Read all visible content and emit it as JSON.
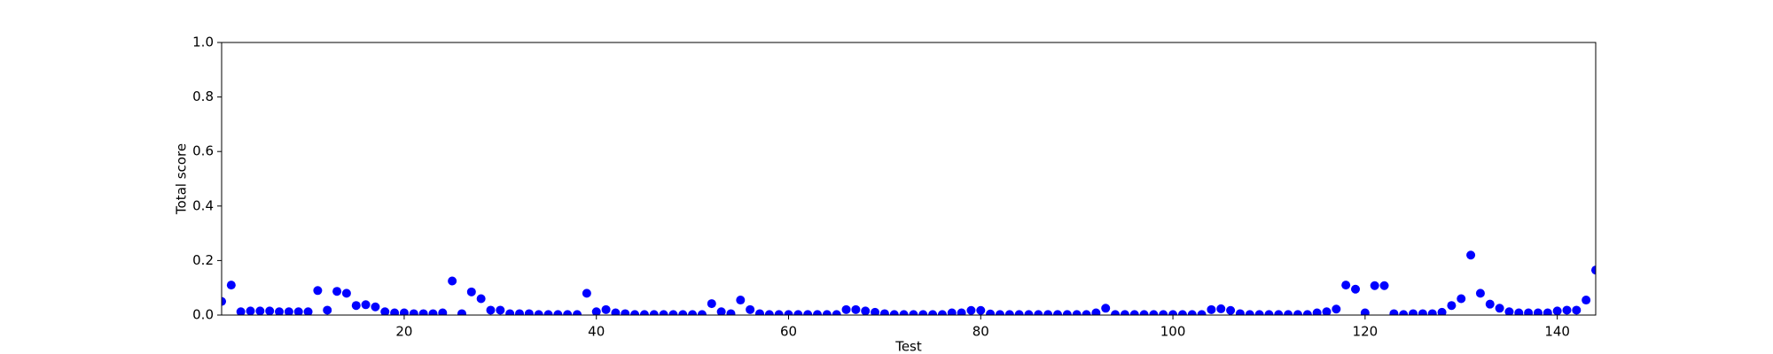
{
  "chart_data": {
    "type": "scatter",
    "x_label": "Test",
    "y_label": "Total score",
    "x": [
      1,
      2,
      3,
      4,
      5,
      6,
      7,
      8,
      9,
      10,
      11,
      12,
      13,
      14,
      15,
      16,
      17,
      18,
      19,
      20,
      21,
      22,
      23,
      24,
      25,
      26,
      27,
      28,
      29,
      30,
      31,
      32,
      33,
      34,
      35,
      36,
      37,
      38,
      39,
      40,
      41,
      42,
      43,
      44,
      45,
      46,
      47,
      48,
      49,
      50,
      51,
      52,
      53,
      54,
      55,
      56,
      57,
      58,
      59,
      60,
      61,
      62,
      63,
      64,
      65,
      66,
      67,
      68,
      69,
      70,
      71,
      72,
      73,
      74,
      75,
      76,
      77,
      78,
      79,
      80,
      81,
      82,
      83,
      84,
      85,
      86,
      87,
      88,
      89,
      90,
      91,
      92,
      93,
      94,
      95,
      96,
      97,
      98,
      99,
      100,
      101,
      102,
      103,
      104,
      105,
      106,
      107,
      108,
      109,
      110,
      111,
      112,
      113,
      114,
      115,
      116,
      117,
      118,
      119,
      120,
      121,
      122,
      123,
      124,
      125,
      126,
      127,
      128,
      129,
      130,
      131,
      132,
      133,
      134,
      135,
      136,
      137,
      138,
      139,
      140,
      141,
      142,
      143,
      144
    ],
    "values": [
      0.05,
      0.11,
      0.012,
      0.015,
      0.015,
      0.015,
      0.012,
      0.012,
      0.012,
      0.012,
      0.09,
      0.018,
      0.087,
      0.08,
      0.035,
      0.038,
      0.03,
      0.012,
      0.008,
      0.008,
      0.005,
      0.005,
      0.005,
      0.008,
      0.125,
      0.005,
      0.085,
      0.06,
      0.018,
      0.018,
      0.005,
      0.005,
      0.005,
      0.002,
      0.002,
      0.002,
      0.002,
      0.002,
      0.08,
      0.012,
      0.02,
      0.008,
      0.005,
      0.002,
      0.002,
      0.002,
      0.002,
      0.002,
      0.002,
      0.002,
      0.002,
      0.042,
      0.012,
      0.005,
      0.055,
      0.02,
      0.005,
      0.002,
      0.002,
      0.002,
      0.002,
      0.002,
      0.002,
      0.002,
      0.002,
      0.02,
      0.02,
      0.015,
      0.01,
      0.005,
      0.002,
      0.002,
      0.002,
      0.002,
      0.002,
      0.002,
      0.008,
      0.008,
      0.017,
      0.017,
      0.004,
      0.002,
      0.002,
      0.002,
      0.002,
      0.002,
      0.002,
      0.002,
      0.002,
      0.002,
      0.002,
      0.008,
      0.025,
      0.002,
      0.002,
      0.002,
      0.002,
      0.002,
      0.002,
      0.002,
      0.002,
      0.002,
      0.002,
      0.02,
      0.023,
      0.017,
      0.005,
      0.002,
      0.002,
      0.002,
      0.002,
      0.002,
      0.002,
      0.002,
      0.008,
      0.012,
      0.022,
      0.11,
      0.095,
      0.008,
      0.108,
      0.108,
      0.005,
      0.002,
      0.005,
      0.005,
      0.005,
      0.01,
      0.035,
      0.06,
      0.22,
      0.08,
      0.04,
      0.025,
      0.012,
      0.008,
      0.008,
      0.008,
      0.008,
      0.015,
      0.018,
      0.018,
      0.055,
      0.165
    ],
    "color": "#0000ff",
    "xlim": [
      1,
      144
    ],
    "xticks": [
      20,
      40,
      60,
      80,
      100,
      120,
      140
    ],
    "ylim": [
      0,
      1
    ],
    "yticks": [
      {
        "value": 0,
        "label": "0.0"
      },
      0.2,
      0.4,
      0.6,
      0.8,
      {
        "value": 1,
        "label": "1.0"
      }
    ]
  }
}
